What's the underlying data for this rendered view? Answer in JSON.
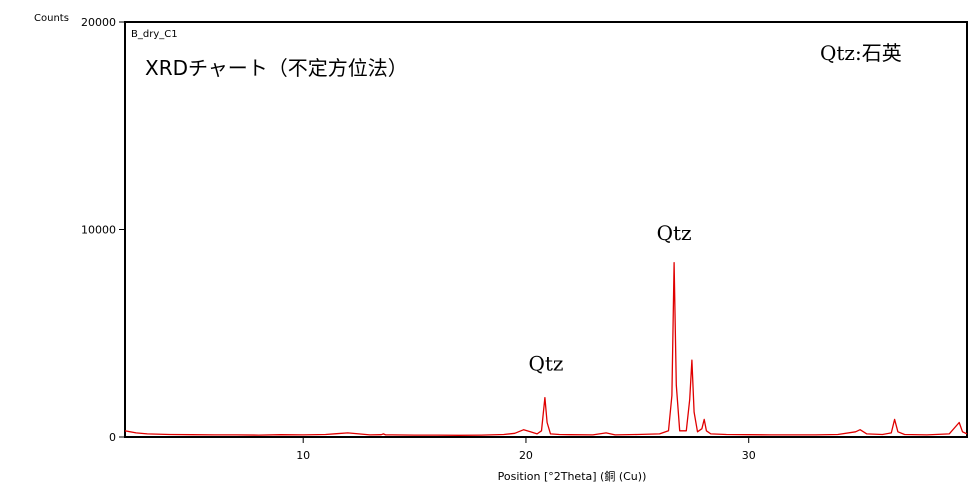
{
  "chart_data": {
    "type": "line",
    "y_axis_unit_label": "Counts",
    "panel_label": "B_dry_C1",
    "title": "XRDチャート（不定方位法）",
    "legend_note": "Qtz:石英",
    "xlabel": "Position [°2Theta] (銅 (Cu))",
    "ylabel": "",
    "xlim": [
      2,
      39.8
    ],
    "ylim": [
      0,
      20000
    ],
    "x_ticks": [
      10,
      20,
      30
    ],
    "y_ticks": [
      0,
      10000,
      20000
    ],
    "grid": false,
    "line_color": "#e00000",
    "series": [
      {
        "x": [
          2.0,
          2.5,
          3.0,
          4.0,
          5.0,
          6.0,
          7.0,
          8.0,
          9.0,
          10.0,
          11.0,
          11.5,
          12.0,
          12.5,
          13.0,
          13.5,
          13.6,
          13.7,
          14.0,
          15.0,
          16.0,
          17.0,
          18.0,
          19.0,
          19.5,
          19.9,
          20.2,
          20.5,
          20.7,
          20.85,
          20.95,
          21.1,
          21.5,
          22.0,
          23.0,
          23.6,
          24.0,
          25.0,
          26.0,
          26.4,
          26.55,
          26.65,
          26.75,
          26.9,
          27.2,
          27.35,
          27.45,
          27.55,
          27.7,
          27.9,
          28.0,
          28.1,
          28.3,
          29.0,
          30.0,
          31.0,
          32.0,
          33.0,
          34.0,
          34.8,
          35.0,
          35.3,
          36.0,
          36.4,
          36.55,
          36.7,
          37.0,
          38.0,
          39.0,
          39.45,
          39.6,
          39.8
        ],
        "y": [
          300,
          200,
          150,
          120,
          110,
          100,
          100,
          90,
          110,
          100,
          120,
          160,
          200,
          150,
          100,
          110,
          150,
          100,
          100,
          90,
          90,
          80,
          90,
          120,
          180,
          350,
          250,
          150,
          300,
          1900,
          700,
          150,
          120,
          110,
          100,
          200,
          100,
          120,
          150,
          300,
          2000,
          8400,
          2500,
          300,
          300,
          1800,
          3700,
          1200,
          250,
          400,
          850,
          300,
          150,
          120,
          110,
          100,
          100,
          100,
          120,
          250,
          350,
          150,
          120,
          200,
          850,
          250,
          120,
          100,
          150,
          700,
          250,
          150
        ]
      }
    ],
    "annotations": [
      {
        "label": "Qtz",
        "x": 20.9,
        "y": 3200
      },
      {
        "label": "Qtz",
        "x": 26.65,
        "y": 9500
      }
    ]
  }
}
